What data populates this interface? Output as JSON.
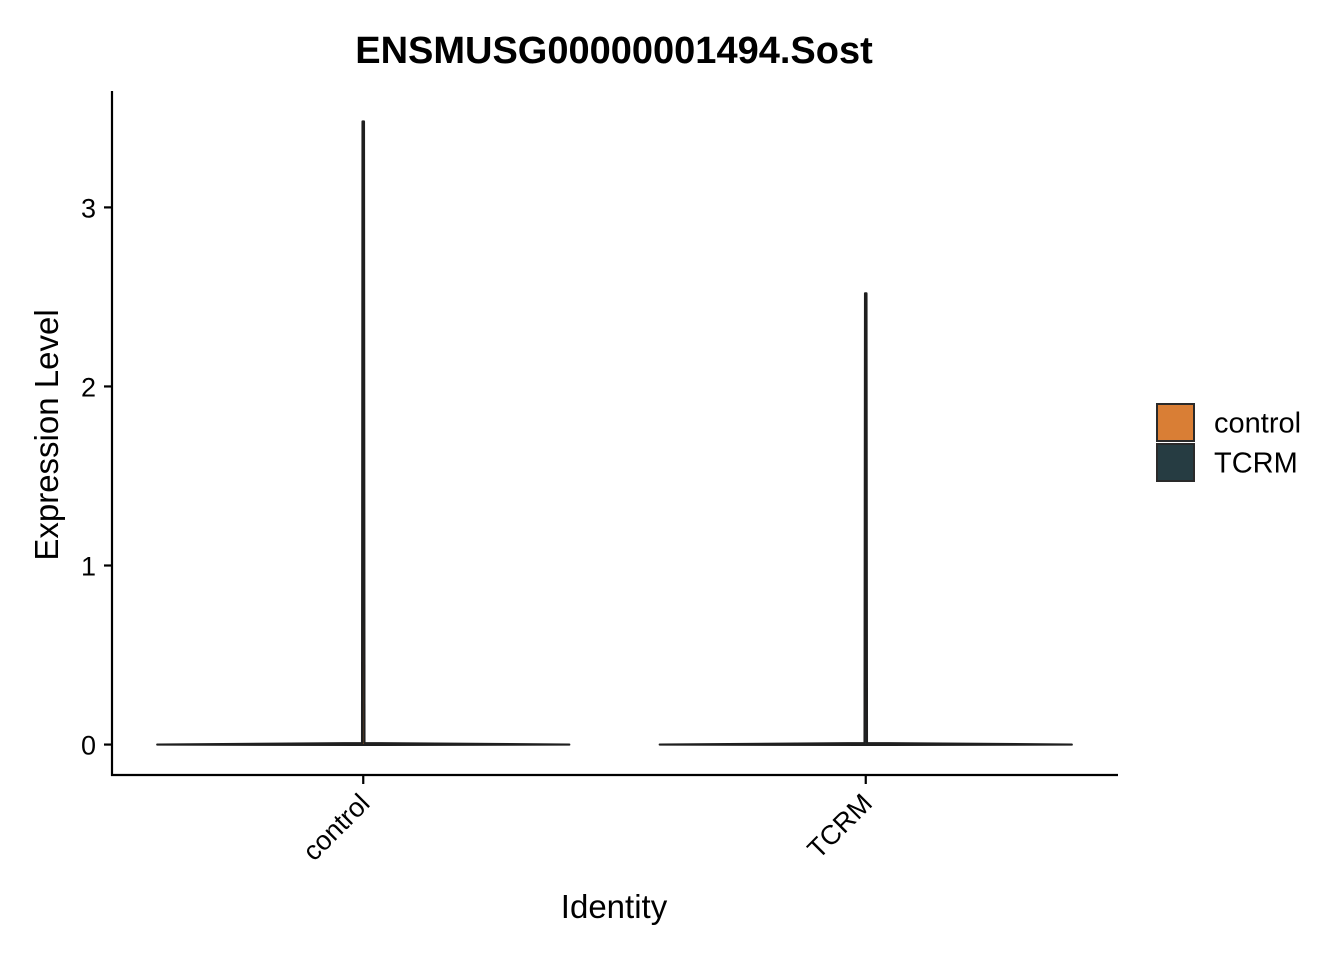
{
  "chart_data": {
    "type": "violin",
    "title": "ENSMUSG00000001494.Sost",
    "xlabel": "Identity",
    "ylabel": "Expression Level",
    "categories": [
      "control",
      "TCRM"
    ],
    "series": [
      {
        "name": "control",
        "color": "#D97E35",
        "max": 3.48,
        "min": 0
      },
      {
        "name": "TCRM",
        "color": "#263C42",
        "max": 2.52,
        "min": 0
      }
    ],
    "yticks": [
      "0",
      "1",
      "2",
      "3"
    ],
    "ylim": [
      -0.17,
      3.65
    ],
    "grid": false,
    "legend_position": "right",
    "legend": [
      "control",
      "TCRM"
    ]
  }
}
